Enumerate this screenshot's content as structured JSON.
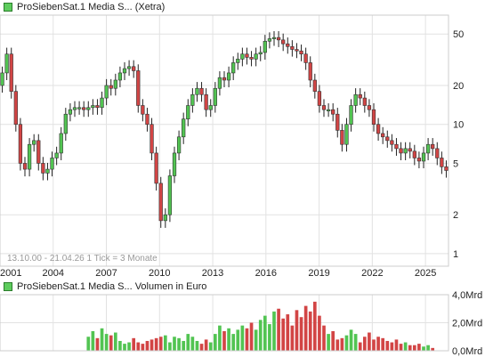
{
  "price_legend": "ProSiebenSat.1 Media S...  (Xetra)",
  "volume_legend": "ProSiebenSat.1 Media S...  Volumen in Euro",
  "info_text": "13.10.00 - 21.04.26   1 Tick = 3 Monate",
  "colors": {
    "up": "#52c452",
    "down": "#d24545",
    "grid": "#e2e2e2",
    "frame": "#cccccc"
  },
  "chart_data": [
    {
      "type": "candlestick",
      "title": "ProSiebenSat.1 Media S... (Xetra)",
      "y_scale": "log",
      "ylim": [
        0.8,
        70
      ],
      "y_ticks": [
        {
          "value": 1,
          "label": "1"
        },
        {
          "value": 2,
          "label": "2"
        },
        {
          "value": 5,
          "label": "5"
        },
        {
          "value": 10,
          "label": "10"
        },
        {
          "value": 20,
          "label": "20"
        },
        {
          "value": 50,
          "label": "50"
        }
      ],
      "x_range": [
        2001.0,
        2026.3
      ],
      "x_ticks": [
        {
          "value": 2001,
          "label": "2001"
        },
        {
          "value": 2004,
          "label": "2004"
        },
        {
          "value": 2007,
          "label": "2007"
        },
        {
          "value": 2010,
          "label": "2010"
        },
        {
          "value": 2013,
          "label": "2013"
        },
        {
          "value": 2016,
          "label": "2016"
        },
        {
          "value": 2019,
          "label": "2019"
        },
        {
          "value": 2022,
          "label": "2022"
        },
        {
          "value": 2025,
          "label": "2025"
        }
      ],
      "closes": [
        25,
        35,
        18,
        10,
        5,
        4.5,
        7,
        7.5,
        5,
        4.2,
        4.5,
        5.5,
        6,
        8.5,
        12,
        13,
        13.5,
        13.5,
        13,
        13.5,
        14,
        13.5,
        16,
        20,
        19,
        22,
        25,
        27,
        28,
        26,
        14,
        12,
        10,
        6,
        3.5,
        1.8,
        2,
        4,
        6,
        8,
        11,
        14,
        17,
        19,
        17,
        13,
        14,
        19,
        23,
        22,
        25,
        30,
        32,
        35,
        33,
        32,
        35,
        36,
        44,
        46,
        47,
        45,
        42,
        40,
        38,
        37,
        35,
        30,
        22,
        18,
        14,
        13,
        13,
        12,
        9,
        7,
        10,
        14,
        17,
        16,
        14,
        13,
        10,
        8.5,
        8,
        7.5,
        7,
        6.5,
        6,
        6.5,
        6.2,
        5.5,
        5.2,
        6,
        7,
        6.5,
        5.5,
        4.7,
        4.4
      ],
      "volume_ylim": [
        0,
        4.0
      ],
      "volume_ticks": [
        {
          "value": 0,
          "label": "0,0Mrd"
        },
        {
          "value": 2,
          "label": "2,0Mrd"
        },
        {
          "value": 4,
          "label": "4,0Mrd"
        }
      ],
      "volume_start_index": 19,
      "volumes": [
        1.0,
        1.4,
        0.9,
        1.6,
        1.2,
        1.1,
        1.3,
        0.7,
        0.5,
        0.6,
        0.9,
        0.6,
        0.5,
        0.7,
        0.8,
        0.9,
        1.0,
        1.1,
        0.6,
        1.0,
        0.9,
        0.7,
        1.2,
        1.0,
        0.7,
        0.5,
        0.8,
        0.6,
        1.2,
        1.8,
        1.4,
        1.6,
        1.2,
        1.5,
        1.8,
        1.6,
        2.0,
        1.5,
        2.2,
        2.5,
        1.9,
        2.8,
        3.0,
        2.3,
        2.6,
        1.8,
        2.9,
        2.4,
        3.2,
        2.8,
        3.5,
        2.5,
        1.8,
        1.2,
        1.4,
        0.8,
        0.9,
        1.1,
        1.5,
        1.2,
        0.6,
        1.0,
        1.3,
        0.8,
        1.0,
        0.9,
        0.7,
        0.6,
        0.8,
        0.5,
        0.6,
        0.4,
        0.4,
        0.5,
        0.3,
        0.4,
        0.2
      ]
    }
  ]
}
